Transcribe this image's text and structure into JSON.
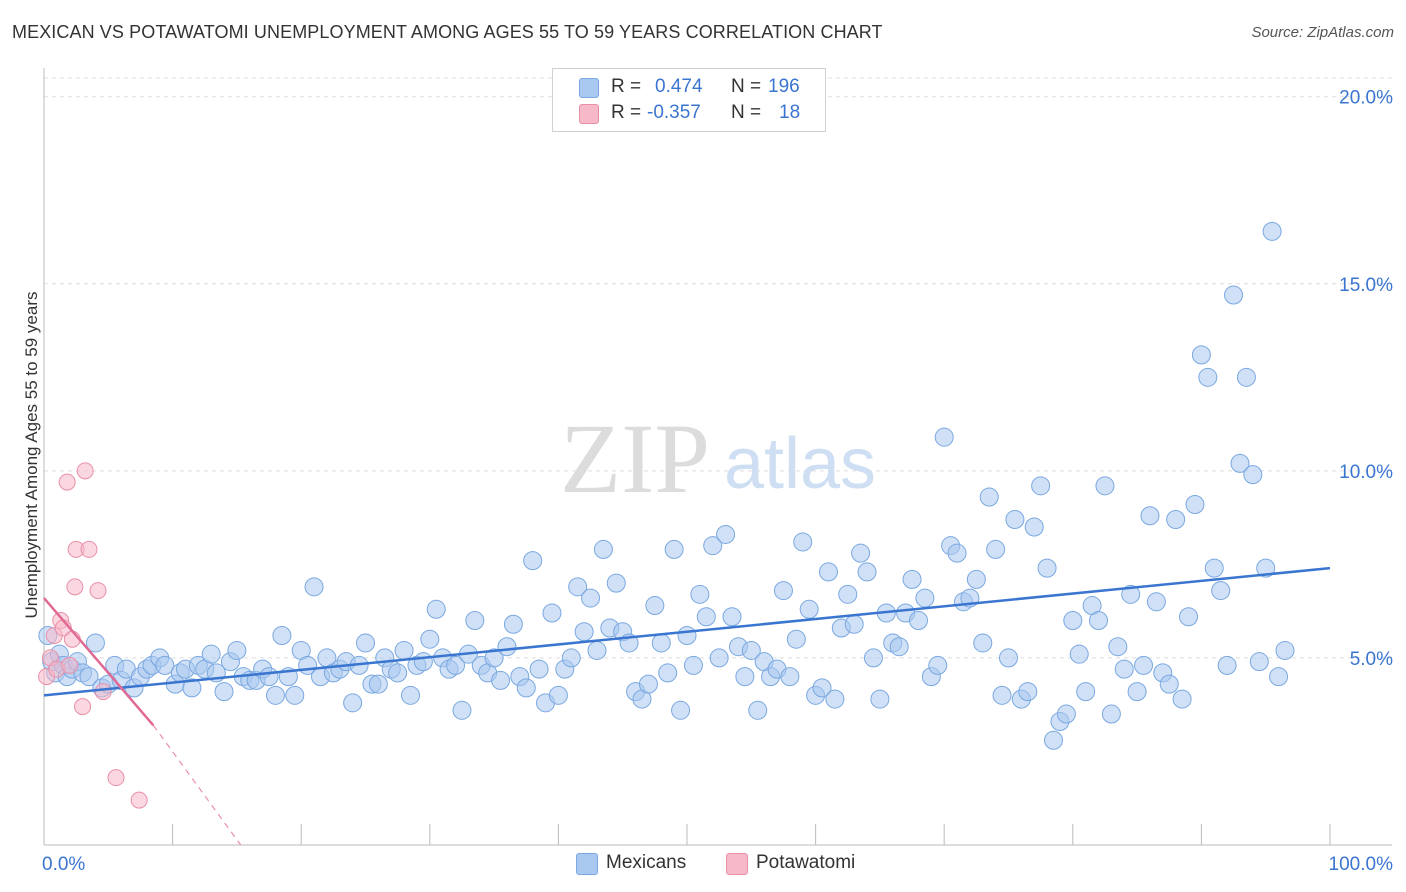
{
  "title": "MEXICAN VS POTAWATOMI UNEMPLOYMENT AMONG AGES 55 TO 59 YEARS CORRELATION CHART",
  "source": "Source: ZipAtlas.com",
  "watermark": {
    "zip": "ZIP",
    "atlas": "atlas"
  },
  "legend": {
    "rows": [
      {
        "r_label": "R =",
        "r_value": "0.474",
        "n_label": "N =",
        "n_value": "196",
        "color": "#a9c8f0",
        "border": "#7aa8e0"
      },
      {
        "r_label": "R =",
        "r_value": "-0.357",
        "n_label": "N =",
        "n_value": "18",
        "color": "#f7b8c8",
        "border": "#e890a8"
      }
    ]
  },
  "bottom_legend": [
    {
      "label": "Mexicans",
      "color": "#a9c8f0",
      "border": "#7aa8e0"
    },
    {
      "label": "Potawatomi",
      "color": "#f7b8c8",
      "border": "#e890a8"
    }
  ],
  "chart_data": {
    "type": "scatter",
    "title": "MEXICAN VS POTAWATOMI UNEMPLOYMENT AMONG AGES 55 TO 59 YEARS CORRELATION CHART",
    "xlabel": "",
    "ylabel": "Unemployment Among Ages 55 to 59 years",
    "xlim": [
      0,
      100
    ],
    "ylim": [
      0,
      20.5
    ],
    "x_tick_labels": [
      "0.0%",
      "100.0%"
    ],
    "y_ticks": [
      5,
      10,
      15,
      20
    ],
    "y_tick_labels": [
      "5.0%",
      "10.0%",
      "15.0%",
      "20.0%"
    ],
    "grid": true,
    "legend_position": "top-center",
    "series": [
      {
        "name": "Mexicans",
        "color": "#6fa0e0",
        "trend": {
          "x": [
            0,
            100
          ],
          "y": [
            4.0,
            7.4
          ]
        },
        "points": [
          [
            0.3,
            5.6
          ],
          [
            0.6,
            4.9
          ],
          [
            0.9,
            4.6
          ],
          [
            1.2,
            5.1
          ],
          [
            1.5,
            4.8
          ],
          [
            1.8,
            4.5
          ],
          [
            2.2,
            4.7
          ],
          [
            2.6,
            4.9
          ],
          [
            3.0,
            4.6
          ],
          [
            3.5,
            4.5
          ],
          [
            4.0,
            5.4
          ],
          [
            4.5,
            4.2
          ],
          [
            5.0,
            4.3
          ],
          [
            5.5,
            4.8
          ],
          [
            6.0,
            4.4
          ],
          [
            6.4,
            4.7
          ],
          [
            7.0,
            4.2
          ],
          [
            7.5,
            4.5
          ],
          [
            8.0,
            4.7
          ],
          [
            8.4,
            4.8
          ],
          [
            9.0,
            5.0
          ],
          [
            9.4,
            4.8
          ],
          [
            10.2,
            4.3
          ],
          [
            10.6,
            4.6
          ],
          [
            11.0,
            4.7
          ],
          [
            11.5,
            4.2
          ],
          [
            12.0,
            4.8
          ],
          [
            12.5,
            4.7
          ],
          [
            13.0,
            5.1
          ],
          [
            13.4,
            4.6
          ],
          [
            14.0,
            4.1
          ],
          [
            14.5,
            4.9
          ],
          [
            15.0,
            5.2
          ],
          [
            15.5,
            4.5
          ],
          [
            16.0,
            4.4
          ],
          [
            16.5,
            4.4
          ],
          [
            17.0,
            4.7
          ],
          [
            17.5,
            4.5
          ],
          [
            18.0,
            4.0
          ],
          [
            18.5,
            5.6
          ],
          [
            19.0,
            4.5
          ],
          [
            19.5,
            4.0
          ],
          [
            20.0,
            5.2
          ],
          [
            20.5,
            4.8
          ],
          [
            21.0,
            6.9
          ],
          [
            21.5,
            4.5
          ],
          [
            22.0,
            5.0
          ],
          [
            22.5,
            4.6
          ],
          [
            23.0,
            4.7
          ],
          [
            23.5,
            4.9
          ],
          [
            24.0,
            3.8
          ],
          [
            24.5,
            4.8
          ],
          [
            25.0,
            5.4
          ],
          [
            25.5,
            4.3
          ],
          [
            26.0,
            4.3
          ],
          [
            26.5,
            5.0
          ],
          [
            27.0,
            4.7
          ],
          [
            27.5,
            4.6
          ],
          [
            28.0,
            5.2
          ],
          [
            28.5,
            4.0
          ],
          [
            29.0,
            4.8
          ],
          [
            29.5,
            4.9
          ],
          [
            30.0,
            5.5
          ],
          [
            30.5,
            6.3
          ],
          [
            31.0,
            5.0
          ],
          [
            31.5,
            4.7
          ],
          [
            32.0,
            4.8
          ],
          [
            32.5,
            3.6
          ],
          [
            33.0,
            5.1
          ],
          [
            33.5,
            6.0
          ],
          [
            34.0,
            4.8
          ],
          [
            34.5,
            4.6
          ],
          [
            35.0,
            5.0
          ],
          [
            35.5,
            4.4
          ],
          [
            36.0,
            5.3
          ],
          [
            36.5,
            5.9
          ],
          [
            37.0,
            4.5
          ],
          [
            37.5,
            4.2
          ],
          [
            38.0,
            7.6
          ],
          [
            38.5,
            4.7
          ],
          [
            39.0,
            3.8
          ],
          [
            39.5,
            6.2
          ],
          [
            40.0,
            4.0
          ],
          [
            40.5,
            4.7
          ],
          [
            41.0,
            5.0
          ],
          [
            41.5,
            6.9
          ],
          [
            42.0,
            5.7
          ],
          [
            42.5,
            6.6
          ],
          [
            43.0,
            5.2
          ],
          [
            43.5,
            7.9
          ],
          [
            44.0,
            5.8
          ],
          [
            44.5,
            7.0
          ],
          [
            45.0,
            5.7
          ],
          [
            45.5,
            5.4
          ],
          [
            46.0,
            4.1
          ],
          [
            46.5,
            3.9
          ],
          [
            47.0,
            4.3
          ],
          [
            47.5,
            6.4
          ],
          [
            48.0,
            5.4
          ],
          [
            48.5,
            4.6
          ],
          [
            49.0,
            7.9
          ],
          [
            49.5,
            3.6
          ],
          [
            50.0,
            5.6
          ],
          [
            50.5,
            4.8
          ],
          [
            51.0,
            6.7
          ],
          [
            51.5,
            6.1
          ],
          [
            52.0,
            8.0
          ],
          [
            52.5,
            5.0
          ],
          [
            53.0,
            8.3
          ],
          [
            53.5,
            6.1
          ],
          [
            54.0,
            5.3
          ],
          [
            54.5,
            4.5
          ],
          [
            55.0,
            5.2
          ],
          [
            55.5,
            3.6
          ],
          [
            56.0,
            4.9
          ],
          [
            56.5,
            4.5
          ],
          [
            57.0,
            4.7
          ],
          [
            57.5,
            6.8
          ],
          [
            58.0,
            4.5
          ],
          [
            58.5,
            5.5
          ],
          [
            59.0,
            8.1
          ],
          [
            59.5,
            6.3
          ],
          [
            60.0,
            4.0
          ],
          [
            60.5,
            4.2
          ],
          [
            61.0,
            7.3
          ],
          [
            61.5,
            3.9
          ],
          [
            62.0,
            5.8
          ],
          [
            62.5,
            6.7
          ],
          [
            63.0,
            5.9
          ],
          [
            63.5,
            7.8
          ],
          [
            64.0,
            7.3
          ],
          [
            64.5,
            5.0
          ],
          [
            65.0,
            3.9
          ],
          [
            65.5,
            6.2
          ],
          [
            66.0,
            5.4
          ],
          [
            66.5,
            5.3
          ],
          [
            67.0,
            6.2
          ],
          [
            67.5,
            7.1
          ],
          [
            68.0,
            6.0
          ],
          [
            68.5,
            6.6
          ],
          [
            69.0,
            4.5
          ],
          [
            69.5,
            4.8
          ],
          [
            70.0,
            10.9
          ],
          [
            70.5,
            8.0
          ],
          [
            71.0,
            7.8
          ],
          [
            71.5,
            6.5
          ],
          [
            72.0,
            6.6
          ],
          [
            72.5,
            7.1
          ],
          [
            73.0,
            5.4
          ],
          [
            73.5,
            9.3
          ],
          [
            74.0,
            7.9
          ],
          [
            74.5,
            4.0
          ],
          [
            75.0,
            5.0
          ],
          [
            75.5,
            8.7
          ],
          [
            76.0,
            3.9
          ],
          [
            76.5,
            4.1
          ],
          [
            77.0,
            8.5
          ],
          [
            77.5,
            9.6
          ],
          [
            78.0,
            7.4
          ],
          [
            78.5,
            2.8
          ],
          [
            79.0,
            3.3
          ],
          [
            79.5,
            3.5
          ],
          [
            80.0,
            6.0
          ],
          [
            80.5,
            5.1
          ],
          [
            81.0,
            4.1
          ],
          [
            81.5,
            6.4
          ],
          [
            82.0,
            6.0
          ],
          [
            82.5,
            9.6
          ],
          [
            83.0,
            3.5
          ],
          [
            83.5,
            5.3
          ],
          [
            84.0,
            4.7
          ],
          [
            84.5,
            6.7
          ],
          [
            85.0,
            4.1
          ],
          [
            85.5,
            4.8
          ],
          [
            86.0,
            8.8
          ],
          [
            86.5,
            6.5
          ],
          [
            87.0,
            4.6
          ],
          [
            87.5,
            4.3
          ],
          [
            88.0,
            8.7
          ],
          [
            88.5,
            3.9
          ],
          [
            89.0,
            6.1
          ],
          [
            89.5,
            9.1
          ],
          [
            90.0,
            13.1
          ],
          [
            90.5,
            12.5
          ],
          [
            91.0,
            7.4
          ],
          [
            91.5,
            6.8
          ],
          [
            92.0,
            4.8
          ],
          [
            92.5,
            14.7
          ],
          [
            93.0,
            10.2
          ],
          [
            93.5,
            12.5
          ],
          [
            94.0,
            9.9
          ],
          [
            94.5,
            4.9
          ],
          [
            95.0,
            7.4
          ],
          [
            95.5,
            16.4
          ],
          [
            96.0,
            4.5
          ],
          [
            96.5,
            5.2
          ]
        ]
      },
      {
        "name": "Potawatomi",
        "color": "#f090b0",
        "trend": {
          "x": [
            0,
            8.5
          ],
          "y": [
            6.6,
            3.2
          ]
        },
        "trend_extension": {
          "x": [
            8.5,
            15.3
          ],
          "y": [
            3.2,
            0.0
          ]
        },
        "points": [
          [
            0.2,
            4.5
          ],
          [
            0.5,
            5.0
          ],
          [
            0.8,
            5.6
          ],
          [
            1.0,
            4.7
          ],
          [
            1.3,
            6.0
          ],
          [
            1.5,
            5.8
          ],
          [
            1.8,
            9.7
          ],
          [
            2.0,
            4.8
          ],
          [
            2.2,
            5.5
          ],
          [
            2.4,
            6.9
          ],
          [
            2.5,
            7.9
          ],
          [
            3.0,
            3.7
          ],
          [
            3.2,
            10.0
          ],
          [
            3.5,
            7.9
          ],
          [
            4.2,
            6.8
          ],
          [
            4.6,
            4.1
          ],
          [
            5.6,
            1.8
          ],
          [
            7.4,
            1.2
          ]
        ]
      }
    ]
  }
}
